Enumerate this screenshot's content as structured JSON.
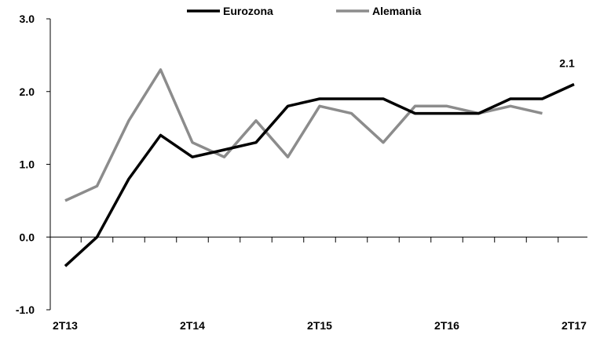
{
  "chart_data": {
    "type": "line",
    "title": "",
    "xlabel": "",
    "ylabel": "",
    "ylim": [
      -1.0,
      3.0
    ],
    "yticks": [
      -1.0,
      0.0,
      1.0,
      2.0,
      3.0
    ],
    "ytick_labels": [
      "-1.0",
      "0.0",
      "1.0",
      "2.0",
      "3.0"
    ],
    "categories": [
      "2T13",
      "3T13",
      "4T13",
      "1T14",
      "2T14",
      "3T14",
      "4T14",
      "1T15",
      "2T15",
      "3T15",
      "4T15",
      "1T16",
      "2T16",
      "3T16",
      "4T16",
      "1T17",
      "2T17"
    ],
    "xtick_labels": [
      {
        "index": 0,
        "label": "2T13"
      },
      {
        "index": 4,
        "label": "2T14"
      },
      {
        "index": 8,
        "label": "2T15"
      },
      {
        "index": 12,
        "label": "2T16"
      },
      {
        "index": 16,
        "label": "2T17"
      }
    ],
    "legend_position": "top",
    "grid": false,
    "series": [
      {
        "name": "Eurozona",
        "color": "#000000",
        "values": [
          -0.4,
          0.0,
          0.8,
          1.4,
          1.1,
          1.2,
          1.3,
          1.8,
          1.9,
          1.9,
          1.9,
          1.7,
          1.7,
          1.7,
          1.9,
          1.9,
          2.1
        ]
      },
      {
        "name": "Alemania",
        "color": "#8c8c8c",
        "values": [
          0.5,
          0.7,
          1.6,
          2.3,
          1.3,
          1.1,
          1.6,
          1.1,
          1.8,
          1.7,
          1.3,
          1.8,
          1.8,
          1.7,
          1.8,
          1.7,
          null
        ]
      }
    ],
    "annotations": [
      {
        "series": "Eurozona",
        "index": 16,
        "text": "2.1"
      }
    ]
  }
}
